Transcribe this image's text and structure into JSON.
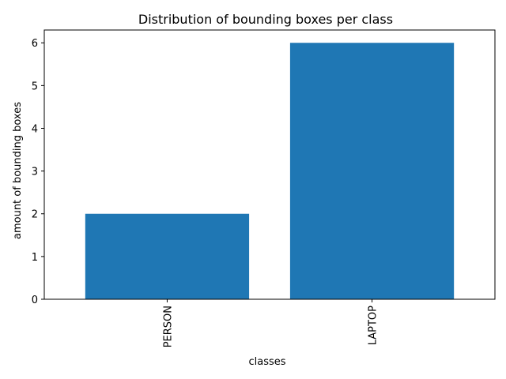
{
  "chart_data": {
    "type": "bar",
    "title": "Distribution of bounding boxes per class",
    "xlabel": "classes",
    "ylabel": "amount of bounding boxes",
    "categories": [
      "PERSON",
      "LAPTOP"
    ],
    "values": [
      2,
      6
    ],
    "ylim": [
      0,
      6.3
    ],
    "yticks": [
      0,
      1,
      2,
      3,
      4,
      5,
      6
    ],
    "bar_color": "#1f77b4",
    "grid": false,
    "legend": "none"
  }
}
